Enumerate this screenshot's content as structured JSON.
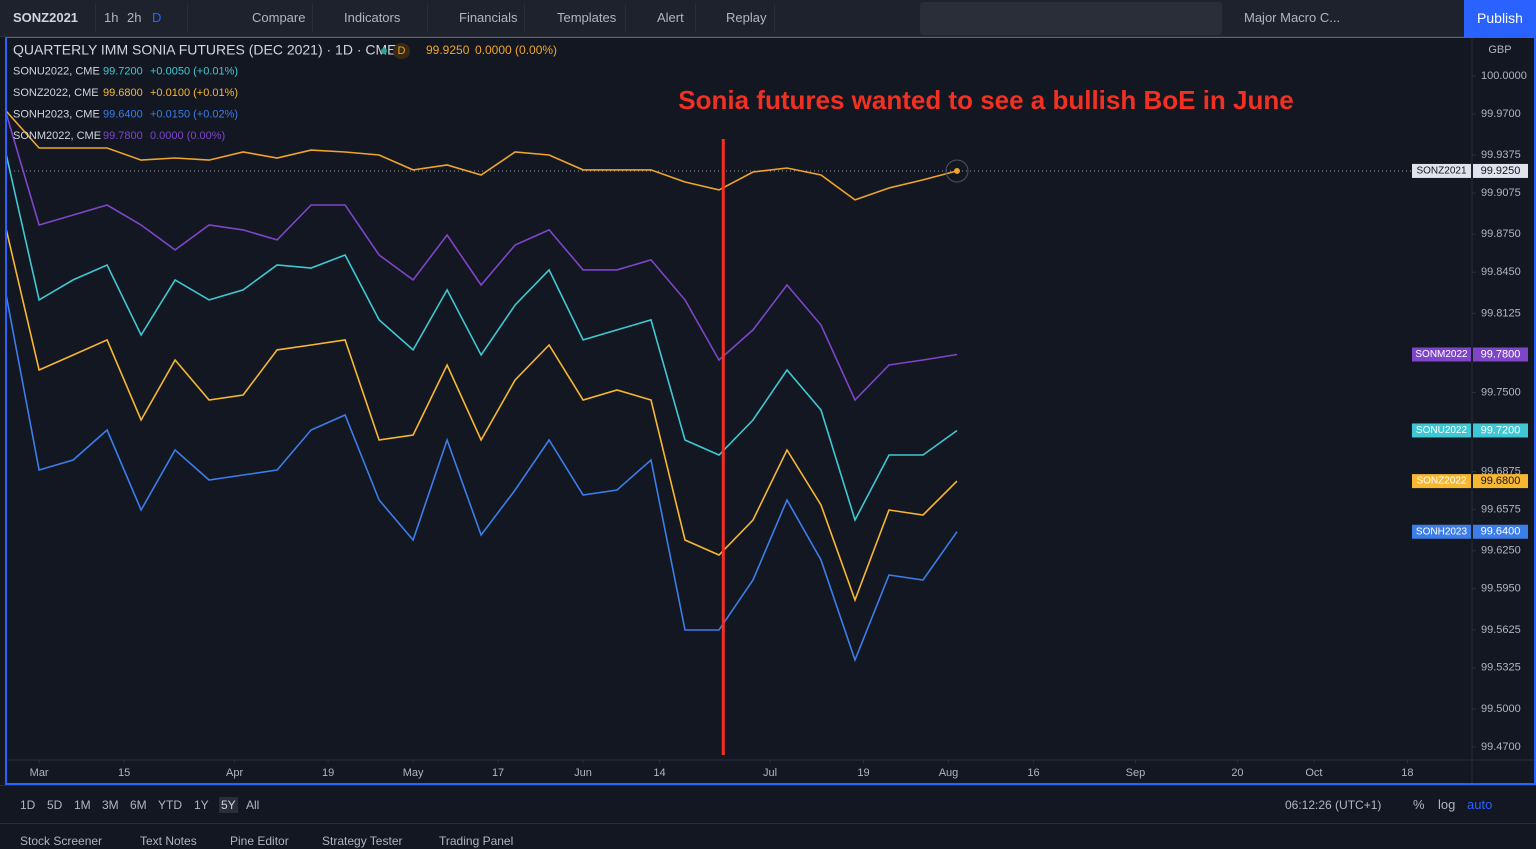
{
  "toolbar": {
    "symbol": "SONZ2021",
    "intervals": [
      "1h",
      "2h",
      "D"
    ],
    "items": [
      "Compare",
      "Indicators",
      "Financials",
      "Templates",
      "Alert",
      "Replay"
    ],
    "layout": "Major Macro C...",
    "publish": "Publish"
  },
  "chart_data": {
    "type": "line",
    "title": "QUARTERLY IMM SONIA FUTURES (DEC 2021) · 1D · CME",
    "interval_badge": "D",
    "currency": "GBP",
    "annotation": "Sonia futures wanted to see a bullish BoE in June",
    "annotation_color": "#f23022",
    "vline": {
      "x": 80.5,
      "color": "#f23022"
    },
    "x": [
      -4,
      0,
      4,
      8,
      12,
      16,
      20,
      24,
      28,
      32,
      36,
      40,
      44,
      48,
      52,
      56,
      60,
      64,
      68,
      72,
      76,
      80,
      84,
      88,
      92,
      96,
      100,
      104,
      108
    ],
    "xlim": [
      -3.9,
      168.6
    ],
    "xticks": [
      {
        "value": 0,
        "label": "Mar"
      },
      {
        "value": 10,
        "label": "15"
      },
      {
        "value": 23,
        "label": "Apr"
      },
      {
        "value": 34,
        "label": "19"
      },
      {
        "value": 44,
        "label": "May"
      },
      {
        "value": 54,
        "label": "17"
      },
      {
        "value": 64,
        "label": "Jun"
      },
      {
        "value": 73,
        "label": "14"
      },
      {
        "value": 86,
        "label": "Jul"
      },
      {
        "value": 97,
        "label": "19"
      },
      {
        "value": 107,
        "label": "Aug"
      },
      {
        "value": 117,
        "label": "16"
      },
      {
        "value": 129,
        "label": "Sep"
      },
      {
        "value": 141,
        "label": "20"
      },
      {
        "value": 150,
        "label": "Oct"
      },
      {
        "value": 161,
        "label": "18"
      }
    ],
    "ylim": [
      99.4597,
      100.0308
    ],
    "yticks": [
      {
        "value": 100,
        "label": "100.0000"
      },
      {
        "value": 99.97,
        "label": "99.9700"
      },
      {
        "value": 99.9375,
        "label": "99.9375"
      },
      {
        "value": 99.9075,
        "label": "99.9075"
      },
      {
        "value": 99.875,
        "label": "99.8750"
      },
      {
        "value": 99.845,
        "label": "99.8450"
      },
      {
        "value": 99.8125,
        "label": "99.8125"
      },
      {
        "value": 99.75,
        "label": "99.7500"
      },
      {
        "value": 99.6875,
        "label": "99.6875"
      },
      {
        "value": 99.6575,
        "label": "99.6575"
      },
      {
        "value": 99.625,
        "label": "99.6250"
      },
      {
        "value": 99.595,
        "label": "99.5950"
      },
      {
        "value": 99.5625,
        "label": "99.5625"
      },
      {
        "value": 99.5325,
        "label": "99.5325"
      },
      {
        "value": 99.5,
        "label": "99.5000"
      },
      {
        "value": 99.47,
        "label": "99.4700"
      }
    ],
    "grid": false,
    "series": [
      {
        "name": "SONZ2021",
        "color": "#f0a42b",
        "last": "99.9250",
        "change": "0.0000 (0.00%)",
        "values": [
          99.9731,
          99.9431,
          99.9431,
          99.9431,
          99.9336,
          99.9352,
          99.9336,
          99.94,
          99.9352,
          99.9415,
          99.94,
          99.9376,
          99.9258,
          99.9297,
          99.9218,
          99.94,
          99.9376,
          99.9258,
          99.9258,
          99.9258,
          99.9163,
          99.91,
          99.9242,
          99.9273,
          99.9218,
          99.9021,
          99.9115,
          99.9179,
          99.925
        ]
      },
      {
        "name": "SONU2022",
        "legend": "SONU2022, CME",
        "color": "#3fc8d4",
        "last": "99.7200",
        "change": "+0.0050 (+0.01%)",
        "values": [
          99.9415,
          99.8231,
          99.8389,
          99.8507,
          99.7954,
          99.8389,
          99.8231,
          99.831,
          99.8507,
          99.8483,
          99.8586,
          99.8073,
          99.7836,
          99.831,
          99.7796,
          99.8191,
          99.8468,
          99.7915,
          99.7994,
          99.8073,
          99.7125,
          99.7006,
          99.7283,
          99.7678,
          99.7362,
          99.6493,
          99.7006,
          99.7006,
          99.72
        ]
      },
      {
        "name": "SONZ2022",
        "legend": "SONZ2022, CME",
        "color": "#f7b731",
        "last": "99.6800",
        "change": "+0.0100 (+0.01%)",
        "values": [
          99.8823,
          99.7678,
          99.7796,
          99.7915,
          99.7283,
          99.7757,
          99.7441,
          99.748,
          99.7836,
          99.7875,
          99.7915,
          99.7125,
          99.7164,
          99.7717,
          99.7125,
          99.7599,
          99.7875,
          99.7441,
          99.752,
          99.7441,
          99.6335,
          99.6216,
          99.6493,
          99.7046,
          99.6611,
          99.5861,
          99.6572,
          99.6532,
          99.68
        ]
      },
      {
        "name": "SONH2023",
        "legend": "SONH2023, CME",
        "color": "#3b7de9",
        "last": "99.6400",
        "change": "+0.0150 (+0.02%)",
        "values": [
          99.831,
          99.6888,
          99.6967,
          99.7204,
          99.6572,
          99.7046,
          99.6809,
          99.6848,
          99.6888,
          99.7204,
          99.7322,
          99.6651,
          99.6335,
          99.7125,
          99.6374,
          99.673,
          99.7125,
          99.669,
          99.673,
          99.6967,
          99.5624,
          99.5624,
          99.6019,
          99.6651,
          99.6177,
          99.5387,
          99.6058,
          99.6019,
          99.64
        ]
      },
      {
        "name": "SONM2022",
        "legend": "SONM2022, CME",
        "color": "#7e45c9",
        "last": "99.7800",
        "change": "0.0000 (0.00%)",
        "values": [
          99.9731,
          99.8823,
          99.8902,
          99.8981,
          99.8823,
          99.8626,
          99.8823,
          99.8784,
          99.8705,
          99.8981,
          99.8981,
          99.8586,
          99.8389,
          99.8744,
          99.8349,
          99.8665,
          99.8784,
          99.8468,
          99.8468,
          99.8547,
          99.8231,
          99.7757,
          99.7994,
          99.8349,
          99.8033,
          99.7441,
          99.7717,
          99.7757,
          99.78
        ]
      }
    ]
  },
  "bottom_bar": {
    "ranges": [
      "1D",
      "5D",
      "1M",
      "3M",
      "6M",
      "YTD",
      "1Y",
      "5Y",
      "All"
    ],
    "clock": "06:12:26 (UTC+1)",
    "percent": "%",
    "log": "log",
    "auto": "auto"
  },
  "tabs": [
    "Stock Screener",
    "Text Notes",
    "Pine Editor",
    "Strategy Tester",
    "Trading Panel"
  ]
}
